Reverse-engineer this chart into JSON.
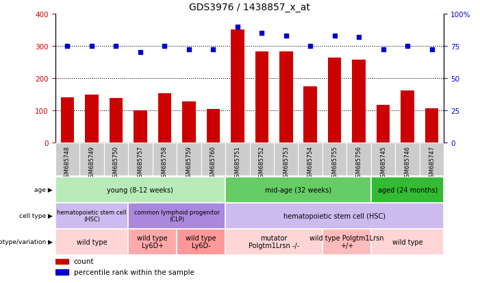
{
  "title": "GDS3976 / 1438857_x_at",
  "samples": [
    "GSM685748",
    "GSM685749",
    "GSM685750",
    "GSM685757",
    "GSM685758",
    "GSM685759",
    "GSM685760",
    "GSM685751",
    "GSM685752",
    "GSM685753",
    "GSM685754",
    "GSM685755",
    "GSM685756",
    "GSM685745",
    "GSM685746",
    "GSM685747"
  ],
  "bar_values": [
    140,
    148,
    138,
    100,
    153,
    127,
    105,
    350,
    282,
    282,
    175,
    263,
    258,
    118,
    162,
    107
  ],
  "dot_values": [
    75,
    75,
    75,
    70,
    75,
    72,
    72,
    90,
    85,
    83,
    75,
    83,
    82,
    72,
    75,
    72
  ],
  "bar_color": "#cc0000",
  "dot_color": "#0000cc",
  "ylim_left": [
    0,
    400
  ],
  "ylim_right": [
    0,
    100
  ],
  "yticks_left": [
    0,
    100,
    200,
    300,
    400
  ],
  "yticks_right": [
    0,
    25,
    50,
    75,
    100
  ],
  "grid_values": [
    100,
    200,
    300
  ],
  "age_groups": [
    {
      "label": "young (8-12 weeks)",
      "start": 0,
      "end": 7,
      "color": "#b8ebb8"
    },
    {
      "label": "mid-age (32 weeks)",
      "start": 7,
      "end": 13,
      "color": "#66cc66"
    },
    {
      "label": "aged (24 months)",
      "start": 13,
      "end": 16,
      "color": "#33bb33"
    }
  ],
  "cell_type_groups": [
    {
      "label": "hematopoietic stem cell\n(HSC)",
      "start": 0,
      "end": 3,
      "color": "#ccbbee"
    },
    {
      "label": "common lymphoid progenitor\n(CLP)",
      "start": 3,
      "end": 7,
      "color": "#aa88dd"
    },
    {
      "label": "hematopoietic stem cell (HSC)",
      "start": 7,
      "end": 16,
      "color": "#ccbbee"
    }
  ],
  "genotype_groups": [
    {
      "label": "wild type",
      "start": 0,
      "end": 3,
      "color": "#ffd5d5"
    },
    {
      "label": "wild type\nLy6D+",
      "start": 3,
      "end": 5,
      "color": "#ffaaaa"
    },
    {
      "label": "wild type\nLy6D-",
      "start": 5,
      "end": 7,
      "color": "#ff9999"
    },
    {
      "label": "mutator\nPolgtm1Lrsn -/-",
      "start": 7,
      "end": 11,
      "color": "#ffd5d5"
    },
    {
      "label": "wild type Polgtm1Lrsn\n+/+",
      "start": 11,
      "end": 13,
      "color": "#ffbbbb"
    },
    {
      "label": "wild type",
      "start": 13,
      "end": 16,
      "color": "#ffd5d5"
    }
  ],
  "row_labels": [
    "age",
    "cell type",
    "genotype/variation"
  ],
  "legend_items": [
    {
      "label": "count",
      "color": "#cc0000"
    },
    {
      "label": "percentile rank within the sample",
      "color": "#0000cc"
    }
  ],
  "xtick_bg_color": "#cccccc",
  "sample_cell_edgecolor": "#ffffff"
}
